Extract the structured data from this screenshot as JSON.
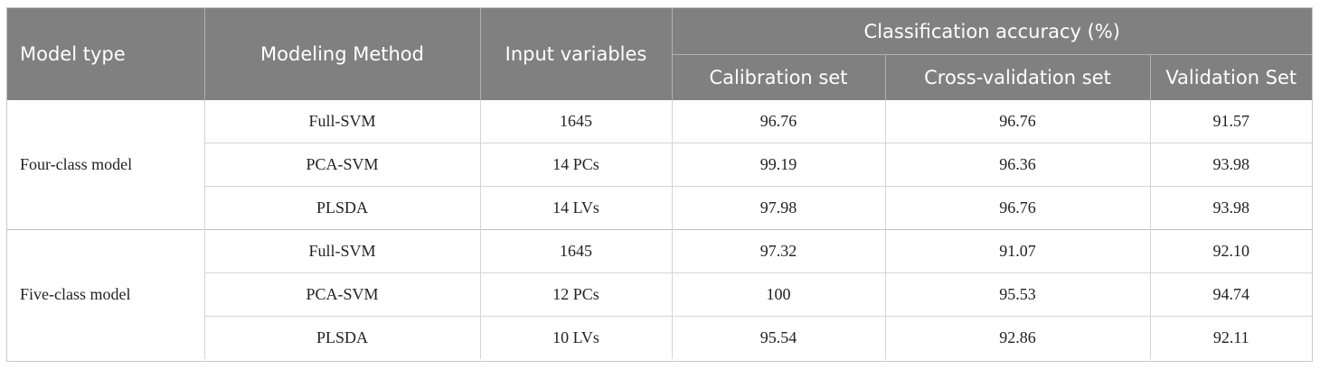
{
  "table": {
    "header": {
      "model_type": "Model type",
      "method": "Modeling Method",
      "inputs": "Input variables",
      "group": "Classification accuracy (%)",
      "subcolumns": [
        "Calibration set",
        "Cross-validation set",
        "Validation Set"
      ]
    },
    "groups": [
      {
        "label": "Four-class model",
        "rows": [
          [
            "Full-SVM",
            "1645",
            "96.76",
            "96.76",
            "91.57"
          ],
          [
            "PCA-SVM",
            "14 PCs",
            "99.19",
            "96.36",
            "93.98"
          ],
          [
            "PLSDA",
            "14 LVs",
            "97.98",
            "96.76",
            "93.98"
          ]
        ]
      },
      {
        "label": "Five-class model",
        "rows": [
          [
            "Full-SVM",
            "1645",
            "97.32",
            "91.07",
            "92.10"
          ],
          [
            "PCA-SVM",
            "12 PCs",
            "100",
            "95.53",
            "94.74"
          ],
          [
            "PLSDA",
            "10 LVs",
            "95.54",
            "92.86",
            "92.11"
          ]
        ]
      }
    ]
  }
}
